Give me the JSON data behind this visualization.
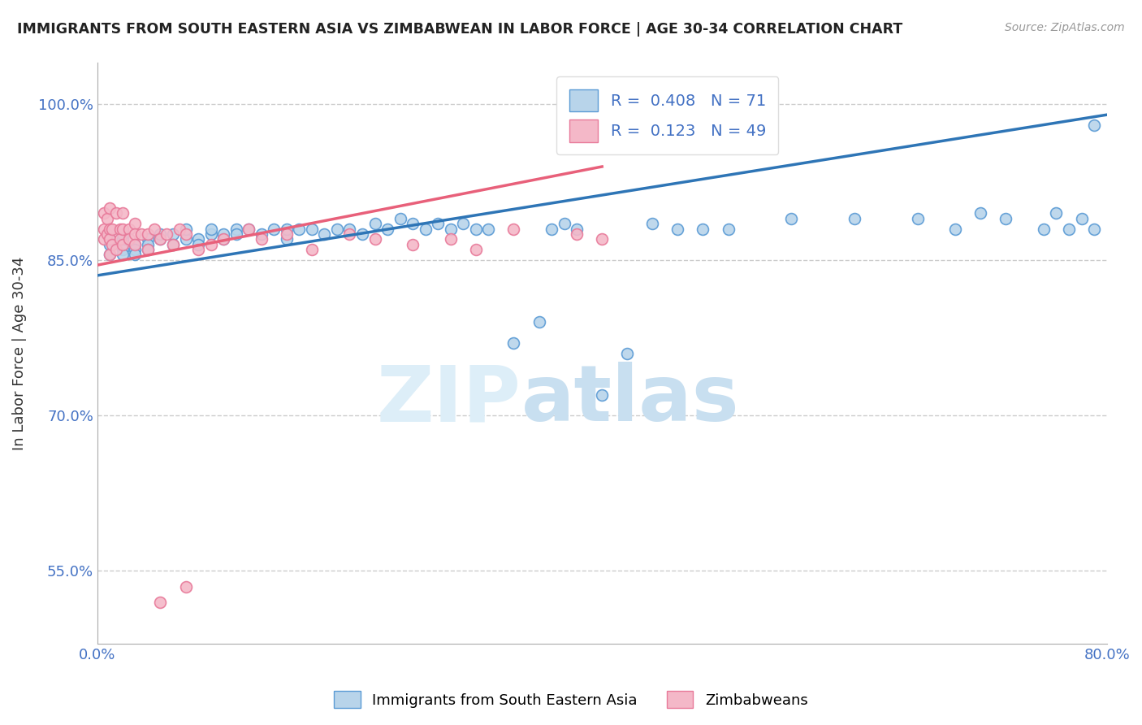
{
  "title": "IMMIGRANTS FROM SOUTH EASTERN ASIA VS ZIMBABWEAN IN LABOR FORCE | AGE 30-34 CORRELATION CHART",
  "source": "Source: ZipAtlas.com",
  "ylabel": "In Labor Force | Age 30-34",
  "xlim": [
    0.0,
    0.8
  ],
  "ylim": [
    0.48,
    1.04
  ],
  "xticks": [
    0.0,
    0.1,
    0.2,
    0.3,
    0.4,
    0.5,
    0.6,
    0.7,
    0.8
  ],
  "xticklabels": [
    "0.0%",
    "",
    "",
    "",
    "",
    "",
    "",
    "",
    "80.0%"
  ],
  "ytick_positions": [
    0.55,
    0.7,
    0.85,
    1.0
  ],
  "yticklabels": [
    "55.0%",
    "70.0%",
    "85.0%",
    "100.0%"
  ],
  "blue_color": "#b8d4ea",
  "blue_edge": "#5b9bd5",
  "pink_color": "#f4b8c8",
  "pink_edge": "#e87a9a",
  "trend_blue": "#2e75b6",
  "trend_pink": "#e8607a",
  "R_blue": 0.408,
  "N_blue": 71,
  "R_pink": 0.123,
  "N_pink": 49,
  "watermark": "ZIPatlas",
  "watermark_color": "#ddeef8",
  "legend_label_blue": "Immigrants from South Eastern Asia",
  "legend_label_pink": "Zimbabweans",
  "blue_scatter_x": [
    0.01,
    0.01,
    0.01,
    0.02,
    0.02,
    0.02,
    0.02,
    0.03,
    0.03,
    0.03,
    0.04,
    0.04,
    0.04,
    0.05,
    0.05,
    0.06,
    0.06,
    0.07,
    0.07,
    0.08,
    0.08,
    0.09,
    0.09,
    0.1,
    0.1,
    0.11,
    0.11,
    0.12,
    0.13,
    0.14,
    0.15,
    0.15,
    0.16,
    0.17,
    0.18,
    0.19,
    0.2,
    0.21,
    0.22,
    0.23,
    0.24,
    0.25,
    0.26,
    0.27,
    0.28,
    0.29,
    0.3,
    0.31,
    0.33,
    0.35,
    0.36,
    0.37,
    0.38,
    0.4,
    0.42,
    0.44,
    0.46,
    0.48,
    0.5,
    0.55,
    0.6,
    0.65,
    0.68,
    0.7,
    0.72,
    0.75,
    0.76,
    0.77,
    0.78,
    0.79,
    0.79
  ],
  "blue_scatter_y": [
    0.865,
    0.87,
    0.855,
    0.86,
    0.855,
    0.87,
    0.875,
    0.865,
    0.86,
    0.855,
    0.87,
    0.865,
    0.86,
    0.87,
    0.875,
    0.875,
    0.865,
    0.87,
    0.88,
    0.87,
    0.865,
    0.875,
    0.88,
    0.87,
    0.875,
    0.88,
    0.875,
    0.88,
    0.875,
    0.88,
    0.87,
    0.88,
    0.88,
    0.88,
    0.875,
    0.88,
    0.88,
    0.875,
    0.885,
    0.88,
    0.89,
    0.885,
    0.88,
    0.885,
    0.88,
    0.885,
    0.88,
    0.88,
    0.77,
    0.79,
    0.88,
    0.885,
    0.88,
    0.72,
    0.76,
    0.885,
    0.88,
    0.88,
    0.88,
    0.89,
    0.89,
    0.89,
    0.88,
    0.895,
    0.89,
    0.88,
    0.895,
    0.88,
    0.89,
    0.98,
    0.88
  ],
  "pink_scatter_x": [
    0.005,
    0.005,
    0.005,
    0.008,
    0.008,
    0.01,
    0.01,
    0.01,
    0.01,
    0.012,
    0.012,
    0.015,
    0.015,
    0.018,
    0.018,
    0.02,
    0.02,
    0.02,
    0.025,
    0.025,
    0.03,
    0.03,
    0.03,
    0.035,
    0.04,
    0.04,
    0.045,
    0.05,
    0.055,
    0.06,
    0.065,
    0.07,
    0.08,
    0.09,
    0.1,
    0.12,
    0.13,
    0.15,
    0.17,
    0.2,
    0.22,
    0.25,
    0.28,
    0.3,
    0.33,
    0.38,
    0.4,
    0.05,
    0.07
  ],
  "pink_scatter_y": [
    0.88,
    0.895,
    0.87,
    0.89,
    0.875,
    0.9,
    0.88,
    0.87,
    0.855,
    0.88,
    0.865,
    0.895,
    0.86,
    0.88,
    0.87,
    0.895,
    0.88,
    0.865,
    0.88,
    0.87,
    0.885,
    0.875,
    0.865,
    0.875,
    0.875,
    0.86,
    0.88,
    0.87,
    0.875,
    0.865,
    0.88,
    0.875,
    0.86,
    0.865,
    0.87,
    0.88,
    0.87,
    0.875,
    0.86,
    0.875,
    0.87,
    0.865,
    0.87,
    0.86,
    0.88,
    0.875,
    0.87,
    0.52,
    0.535
  ],
  "blue_trend_x0": 0.0,
  "blue_trend_y0": 0.835,
  "blue_trend_x1": 0.8,
  "blue_trend_y1": 0.99,
  "pink_trend_x0": 0.0,
  "pink_trend_y0": 0.845,
  "pink_trend_x1": 0.4,
  "pink_trend_y1": 0.94,
  "marker_size": 100,
  "grid_color": "#cccccc",
  "bg_color": "#ffffff"
}
